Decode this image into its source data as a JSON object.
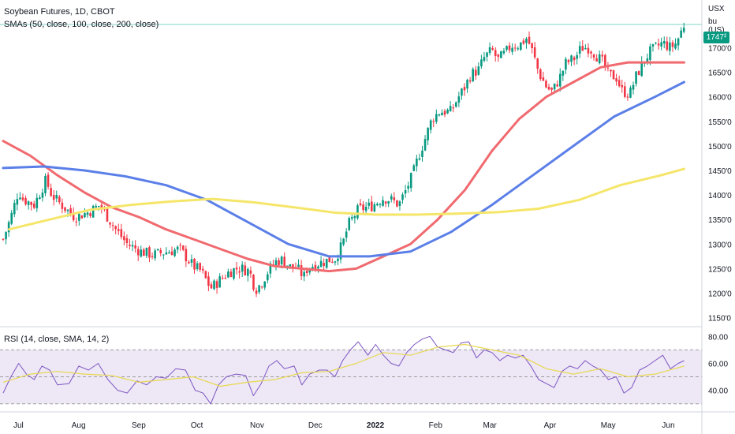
{
  "header": {
    "title": "Soybean Futures, 1D, CBOT",
    "indicator": "SMAs (50, close, 100, close, 200, close)",
    "rsi_label": "RSI (14, close, SMA, 14, 2)",
    "unit_line1": "USX",
    "unit_line2": "bu (US)",
    "last_price": "1747²"
  },
  "colors": {
    "up": "#089981",
    "down": "#f23645",
    "sma50": "#f06a6f",
    "sma100": "#5b7fe8",
    "sma200": "#f5e66a",
    "rsi": "#7e57c2",
    "rsi_ma": "#e8d84e",
    "rsi_band": "#ede7f6",
    "last_line": "#7fd3c3"
  },
  "chart_data": [
    {
      "type": "candlestick",
      "title": "Soybean Futures, 1D, CBOT",
      "x_ticks": [
        "Jul",
        "Aug",
        "Sep",
        "Oct",
        "Nov",
        "Dec",
        "2022",
        "Feb",
        "Mar",
        "Apr",
        "May",
        "Jun"
      ],
      "y_ticks": [
        "1150'0",
        "1200'0",
        "1250'0",
        "1300'0",
        "1350'0",
        "1400'0",
        "1450'0",
        "1500'0",
        "1550'0",
        "1600'0",
        "1650'0",
        "1700'0"
      ],
      "y_tick_values": [
        1150,
        1200,
        1250,
        1300,
        1350,
        1400,
        1450,
        1500,
        1550,
        1600,
        1650,
        1700
      ],
      "ylim": [
        1135,
        1765
      ],
      "last_price": 1747.25,
      "close_path": [
        [
          "Jun 28",
          1310
        ],
        [
          "Jul 2",
          1355
        ],
        [
          "Jul 6",
          1410
        ],
        [
          "Jul 8",
          1392
        ],
        [
          "Jul 14",
          1380
        ],
        [
          "Jul 20",
          1430
        ],
        [
          "Jul 23",
          1400
        ],
        [
          "Jul 28",
          1380
        ],
        [
          "Aug 4",
          1355
        ],
        [
          "Aug 11",
          1365
        ],
        [
          "Aug 17",
          1380
        ],
        [
          "Aug 20",
          1360
        ],
        [
          "Aug 25",
          1330
        ],
        [
          "Aug 31",
          1300
        ],
        [
          "Sep 7",
          1285
        ],
        [
          "Sep 13",
          1278
        ],
        [
          "Sep 20",
          1284
        ],
        [
          "Sep 27",
          1290
        ],
        [
          "Oct 4",
          1255
        ],
        [
          "Oct 8",
          1245
        ],
        [
          "Oct 13",
          1210
        ],
        [
          "Oct 18",
          1228
        ],
        [
          "Oct 22",
          1242
        ],
        [
          "Oct 26",
          1250
        ],
        [
          "Oct 29",
          1250
        ],
        [
          "Nov 2",
          1245
        ],
        [
          "Nov 5",
          1207
        ],
        [
          "Nov 8",
          1220
        ],
        [
          "Nov 12",
          1248
        ],
        [
          "Nov 16",
          1266
        ],
        [
          "Nov 19",
          1268
        ],
        [
          "Nov 23",
          1253
        ],
        [
          "Nov 26",
          1253
        ],
        [
          "Nov 30",
          1233
        ],
        [
          "Dec 2",
          1253
        ],
        [
          "Dec 7",
          1260
        ],
        [
          "Dec 13",
          1268
        ],
        [
          "Dec 16",
          1270
        ],
        [
          "Dec 20",
          1300
        ],
        [
          "Dec 23",
          1340
        ],
        [
          "Dec 28",
          1370
        ],
        [
          "Jan 4",
          1378
        ],
        [
          "Jan 10",
          1394
        ],
        [
          "Jan 14",
          1390
        ],
        [
          "Jan 18",
          1380
        ],
        [
          "Jan 21",
          1405
        ],
        [
          "Jan 25",
          1440
        ],
        [
          "Jan 28",
          1478
        ],
        [
          "Feb 1",
          1520
        ],
        [
          "Feb 4",
          1555
        ],
        [
          "Feb 8",
          1570
        ],
        [
          "Feb 14",
          1570
        ],
        [
          "Feb 17",
          1595
        ],
        [
          "Feb 21",
          1620
        ],
        [
          "Feb 24",
          1645
        ],
        [
          "Feb 28",
          1655
        ],
        [
          "Mar 3",
          1680
        ],
        [
          "Mar 7",
          1695
        ],
        [
          "Mar 10",
          1675
        ],
        [
          "Mar 14",
          1690
        ],
        [
          "Mar 17",
          1705
        ],
        [
          "Mar 21",
          1705
        ],
        [
          "Mar 25",
          1720
        ],
        [
          "Mar 28",
          1690
        ],
        [
          "Mar 31",
          1650
        ],
        [
          "Apr 4",
          1620
        ],
        [
          "Apr 7",
          1610
        ],
        [
          "Apr 11",
          1640
        ],
        [
          "Apr 14",
          1668
        ],
        [
          "Apr 19",
          1680
        ],
        [
          "Apr 22",
          1700
        ],
        [
          "Apr 26",
          1700
        ],
        [
          "Apr 29",
          1688
        ],
        [
          "May 3",
          1670
        ],
        [
          "May 6",
          1645
        ],
        [
          "May 10",
          1640
        ],
        [
          "May 13",
          1612
        ],
        [
          "May 17",
          1605
        ],
        [
          "May 20",
          1640
        ],
        [
          "May 24",
          1670
        ],
        [
          "May 27",
          1690
        ],
        [
          "May 31",
          1702
        ],
        [
          "Jun 3",
          1710
        ],
        [
          "Jun 7",
          1700
        ],
        [
          "Jun 10",
          1710
        ],
        [
          "Jun 14",
          1747
        ]
      ],
      "series": [
        {
          "name": "SMA 50",
          "points": [
            [
              "Jun 28",
              1510
            ],
            [
              "Jul 12",
              1480
            ],
            [
              "Jul 26",
              1440
            ],
            [
              "Aug 9",
              1405
            ],
            [
              "Aug 23",
              1375
            ],
            [
              "Sep 6",
              1355
            ],
            [
              "Sep 20",
              1330
            ],
            [
              "Oct 4",
              1310
            ],
            [
              "Oct 18",
              1290
            ],
            [
              "Nov 1",
              1270
            ],
            [
              "Nov 15",
              1255
            ],
            [
              "Nov 29",
              1250
            ],
            [
              "Dec 13",
              1245
            ],
            [
              "Dec 27",
              1250
            ],
            [
              "Jan 10",
              1275
            ],
            [
              "Jan 24",
              1300
            ],
            [
              "Feb 7",
              1350
            ],
            [
              "Feb 21",
              1410
            ],
            [
              "Mar 7",
              1490
            ],
            [
              "Mar 21",
              1555
            ],
            [
              "Apr 4",
              1600
            ],
            [
              "Apr 18",
              1630
            ],
            [
              "May 2",
              1660
            ],
            [
              "May 16",
              1670
            ],
            [
              "May 30",
              1670
            ],
            [
              "Jun 14",
              1670
            ]
          ]
        },
        {
          "name": "SMA 100",
          "points": [
            [
              "Jun 28",
              1455
            ],
            [
              "Jul 19",
              1458
            ],
            [
              "Aug 9",
              1450
            ],
            [
              "Aug 30",
              1438
            ],
            [
              "Sep 20",
              1420
            ],
            [
              "Oct 11",
              1390
            ],
            [
              "Nov 1",
              1345
            ],
            [
              "Nov 22",
              1300
            ],
            [
              "Dec 13",
              1275
            ],
            [
              "Jan 3",
              1275
            ],
            [
              "Jan 24",
              1285
            ],
            [
              "Feb 14",
              1325
            ],
            [
              "Mar 7",
              1380
            ],
            [
              "Mar 28",
              1440
            ],
            [
              "Apr 18",
              1500
            ],
            [
              "May 9",
              1560
            ],
            [
              "May 30",
              1600
            ],
            [
              "Jun 14",
              1630
            ]
          ]
        },
        {
          "name": "SMA 200",
          "points": [
            [
              "Jul 1",
              1330
            ],
            [
              "Jul 22",
              1350
            ],
            [
              "Aug 12",
              1370
            ],
            [
              "Sep 2",
              1380
            ],
            [
              "Sep 23",
              1387
            ],
            [
              "Oct 14",
              1392
            ],
            [
              "Nov 4",
              1385
            ],
            [
              "Nov 25",
              1375
            ],
            [
              "Dec 16",
              1364
            ],
            [
              "Jan 6",
              1360
            ],
            [
              "Jan 27",
              1360
            ],
            [
              "Feb 17",
              1362
            ],
            [
              "Mar 10",
              1365
            ],
            [
              "Mar 31",
              1372
            ],
            [
              "Apr 21",
              1390
            ],
            [
              "May 12",
              1420
            ],
            [
              "Jun 2",
              1440
            ],
            [
              "Jun 14",
              1453
            ]
          ]
        }
      ]
    },
    {
      "type": "line",
      "title": "RSI (14, close, SMA, 14, 2)",
      "y_ticks": [
        "40.00",
        "60.00",
        "80.00"
      ],
      "y_tick_values": [
        40,
        60,
        80
      ],
      "bands": [
        30,
        50,
        70
      ],
      "ylim": [
        24,
        86
      ],
      "series": [
        {
          "name": "RSI",
          "points": [
            [
              "Jun 28",
              38
            ],
            [
              "Jul 2",
              50
            ],
            [
              "Jul 6",
              60
            ],
            [
              "Jul 10",
              52
            ],
            [
              "Jul 14",
              48
            ],
            [
              "Jul 18",
              58
            ],
            [
              "Jul 22",
              55
            ],
            [
              "Jul 26",
              44
            ],
            [
              "Aug 1",
              45
            ],
            [
              "Aug 6",
              58
            ],
            [
              "Aug 11",
              55
            ],
            [
              "Aug 16",
              60
            ],
            [
              "Aug 21",
              48
            ],
            [
              "Aug 26",
              40
            ],
            [
              "Aug 31",
              38
            ],
            [
              "Sep 5",
              47
            ],
            [
              "Sep 10",
              44
            ],
            [
              "Sep 15",
              50
            ],
            [
              "Sep 20",
              49
            ],
            [
              "Sep 25",
              56
            ],
            [
              "Sep 30",
              55
            ],
            [
              "Oct 5",
              40
            ],
            [
              "Oct 9",
              38
            ],
            [
              "Oct 13",
              30
            ],
            [
              "Oct 17",
              44
            ],
            [
              "Oct 21",
              50
            ],
            [
              "Oct 26",
              52
            ],
            [
              "Oct 31",
              51
            ],
            [
              "Nov 4",
              36
            ],
            [
              "Nov 8",
              45
            ],
            [
              "Nov 12",
              58
            ],
            [
              "Nov 16",
              62
            ],
            [
              "Nov 20",
              56
            ],
            [
              "Nov 25",
              58
            ],
            [
              "Nov 29",
              44
            ],
            [
              "Dec 3",
              52
            ],
            [
              "Dec 8",
              55
            ],
            [
              "Dec 12",
              55
            ],
            [
              "Dec 16",
              50
            ],
            [
              "Dec 20",
              62
            ],
            [
              "Dec 24",
              70
            ],
            [
              "Dec 28",
              76
            ],
            [
              "Jan 2",
              66
            ],
            [
              "Jan 6",
              74
            ],
            [
              "Jan 10",
              66
            ],
            [
              "Jan 14",
              60
            ],
            [
              "Jan 18",
              58
            ],
            [
              "Jan 22",
              68
            ],
            [
              "Jan 26",
              74
            ],
            [
              "Jan 30",
              78
            ],
            [
              "Feb 3",
              80
            ],
            [
              "Feb 7",
              72
            ],
            [
              "Feb 11",
              70
            ],
            [
              "Feb 15",
              68
            ],
            [
              "Feb 19",
              75
            ],
            [
              "Feb 23",
              76
            ],
            [
              "Feb 27",
              64
            ],
            [
              "Mar 3",
              70
            ],
            [
              "Mar 7",
              68
            ],
            [
              "Mar 11",
              62
            ],
            [
              "Mar 15",
              66
            ],
            [
              "Mar 19",
              64
            ],
            [
              "Mar 23",
              66
            ],
            [
              "Mar 27",
              58
            ],
            [
              "Mar 31",
              48
            ],
            [
              "Apr 4",
              45
            ],
            [
              "Apr 8",
              42
            ],
            [
              "Apr 12",
              54
            ],
            [
              "Apr 16",
              58
            ],
            [
              "Apr 20",
              56
            ],
            [
              "Apr 24",
              62
            ],
            [
              "Apr 28",
              58
            ],
            [
              "May 2",
              55
            ],
            [
              "May 6",
              48
            ],
            [
              "May 10",
              50
            ],
            [
              "May 14",
              38
            ],
            [
              "May 18",
              42
            ],
            [
              "May 22",
              55
            ],
            [
              "May 26",
              58
            ],
            [
              "May 30",
              62
            ],
            [
              "Jun 3",
              66
            ],
            [
              "Jun 7",
              56
            ],
            [
              "Jun 11",
              60
            ],
            [
              "Jun 14",
              62
            ]
          ]
        },
        {
          "name": "RSI-based MA",
          "points": [
            [
              "Jun 28",
              46
            ],
            [
              "Jul 12",
              52
            ],
            [
              "Jul 26",
              54
            ],
            [
              "Aug 9",
              52
            ],
            [
              "Aug 23",
              51
            ],
            [
              "Sep 6",
              46
            ],
            [
              "Sep 20",
              48
            ],
            [
              "Oct 4",
              50
            ],
            [
              "Oct 18",
              43
            ],
            [
              "Nov 1",
              46
            ],
            [
              "Nov 15",
              48
            ],
            [
              "Nov 29",
              53
            ],
            [
              "Dec 13",
              54
            ],
            [
              "Dec 27",
              60
            ],
            [
              "Jan 10",
              68
            ],
            [
              "Jan 24",
              66
            ],
            [
              "Feb 7",
              72
            ],
            [
              "Feb 21",
              74
            ],
            [
              "Mar 7",
              70
            ],
            [
              "Mar 21",
              66
            ],
            [
              "Apr 4",
              56
            ],
            [
              "Apr 18",
              52
            ],
            [
              "May 2",
              56
            ],
            [
              "May 16",
              50
            ],
            [
              "May 30",
              52
            ],
            [
              "Jun 14",
              58
            ]
          ]
        }
      ]
    }
  ]
}
